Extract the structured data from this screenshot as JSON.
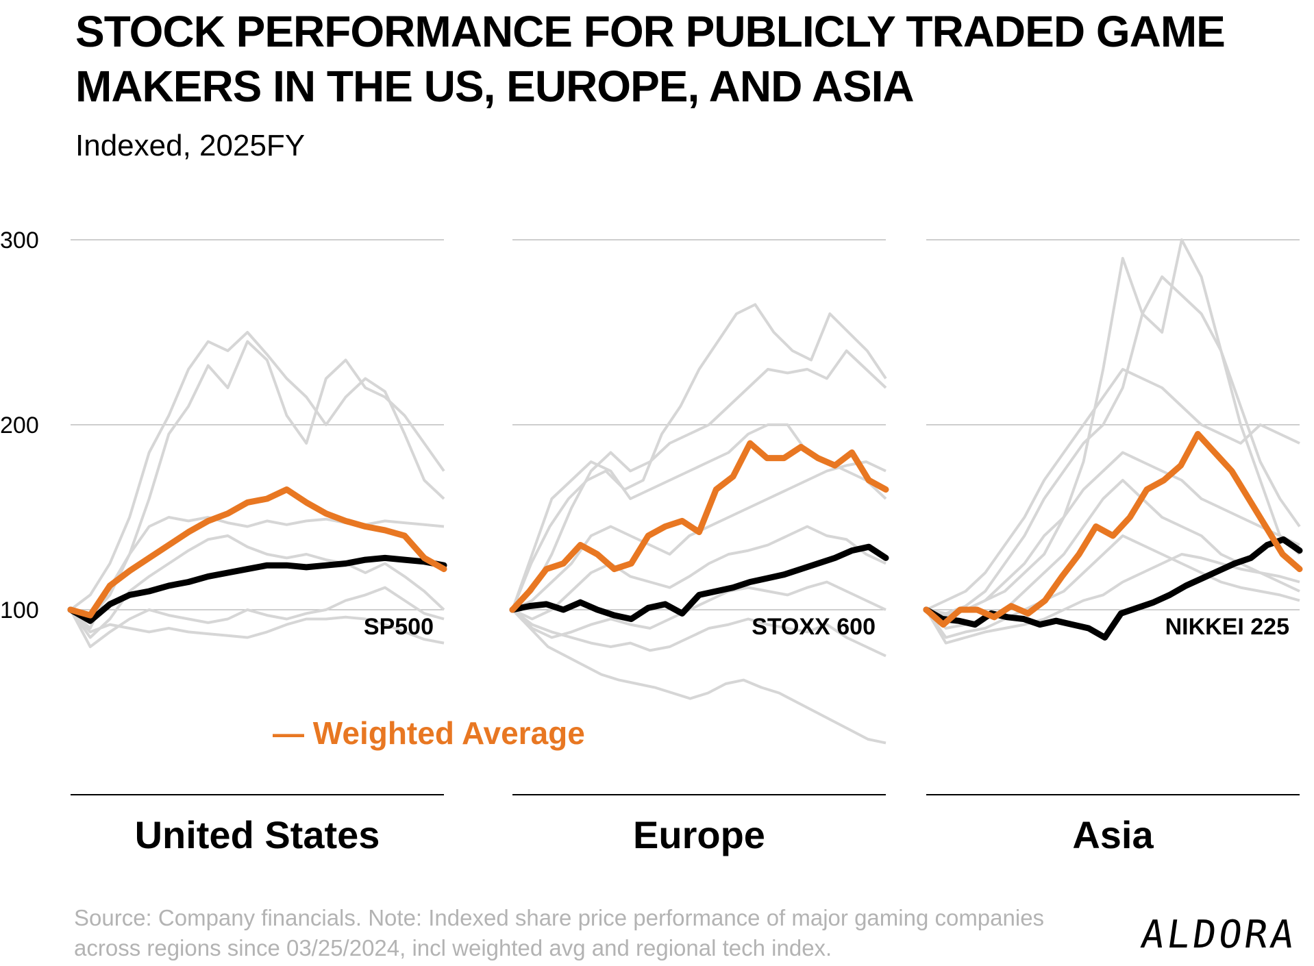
{
  "title": "STOCK PERFORMANCE FOR PUBLICLY TRADED GAME MAKERS IN THE US, EUROPE, AND ASIA",
  "subtitle": "Indexed, 2025FY",
  "source": "Source: Company financials. Note: Indexed share price performance of major gaming companies across regions since 03/25/2024, incl weighted avg and regional tech index.",
  "logo": "ALDORA",
  "colors": {
    "weighted_average": "#E87722",
    "index": "#000000",
    "companies": "#d6d6d6",
    "grid": "#bdbdbd",
    "axis": "#000000"
  },
  "chart_data": {
    "type": "line",
    "ylim": [
      0,
      300
    ],
    "yticks": [
      100,
      200,
      300
    ],
    "legend": {
      "label": "— Weighted  Average",
      "placement": "center-bottom"
    },
    "panels": [
      {
        "region": "United States",
        "index_name": "SP500",
        "weighted_average": [
          100,
          97,
          113,
          121,
          128,
          135,
          142,
          148,
          152,
          158,
          160,
          165,
          158,
          152,
          148,
          145,
          143,
          140,
          128,
          122
        ],
        "index": [
          100,
          94,
          103,
          108,
          110,
          113,
          115,
          118,
          120,
          122,
          124,
          124,
          123,
          124,
          125,
          127,
          128,
          127,
          126,
          124
        ],
        "companies": [
          [
            100,
            108,
            125,
            150,
            185,
            205,
            230,
            245,
            240,
            250,
            238,
            225,
            215,
            200,
            215,
            225,
            218,
            195,
            170,
            160
          ],
          [
            100,
            96,
            108,
            130,
            160,
            195,
            210,
            232,
            220,
            245,
            235,
            205,
            190,
            225,
            235,
            220,
            215,
            205,
            190,
            175
          ],
          [
            100,
            90,
            112,
            130,
            145,
            150,
            148,
            150,
            147,
            145,
            148,
            146,
            148,
            149,
            147,
            146,
            148,
            147,
            146,
            145
          ],
          [
            100,
            85,
            95,
            110,
            118,
            125,
            132,
            138,
            140,
            134,
            130,
            128,
            130,
            127,
            125,
            120,
            125,
            118,
            110,
            100
          ],
          [
            100,
            80,
            88,
            95,
            100,
            97,
            95,
            93,
            95,
            100,
            97,
            95,
            98,
            100,
            105,
            108,
            112,
            105,
            98,
            95
          ],
          [
            100,
            88,
            92,
            90,
            88,
            90,
            88,
            87,
            86,
            85,
            88,
            92,
            95,
            95,
            96,
            95,
            92,
            88,
            84,
            82
          ]
        ]
      },
      {
        "region": "Europe",
        "index_name": "STOXX 600",
        "weighted_average": [
          100,
          110,
          122,
          125,
          135,
          130,
          122,
          125,
          140,
          145,
          148,
          142,
          165,
          172,
          190,
          182,
          182,
          188,
          182,
          178,
          185,
          170,
          165
        ],
        "index": [
          100,
          102,
          103,
          100,
          104,
          100,
          97,
          95,
          101,
          103,
          98,
          108,
          110,
          112,
          115,
          117,
          119,
          122,
          125,
          128,
          132,
          134,
          128
        ],
        "companies": [
          [
            100,
            125,
            145,
            160,
            170,
            175,
            165,
            170,
            195,
            210,
            230,
            245,
            260,
            265,
            250,
            240,
            235,
            260,
            250,
            240,
            225
          ],
          [
            100,
            110,
            130,
            155,
            175,
            185,
            175,
            180,
            190,
            195,
            200,
            210,
            220,
            230,
            228,
            230,
            225,
            240,
            230,
            220
          ],
          [
            100,
            130,
            160,
            170,
            180,
            175,
            160,
            165,
            170,
            175,
            180,
            185,
            195,
            200,
            200,
            185,
            180,
            175,
            170,
            160
          ],
          [
            100,
            105,
            115,
            125,
            140,
            145,
            140,
            135,
            130,
            140,
            145,
            150,
            155,
            160,
            165,
            170,
            175,
            178,
            180,
            175
          ],
          [
            100,
            95,
            100,
            110,
            120,
            125,
            118,
            115,
            112,
            118,
            125,
            130,
            132,
            135,
            140,
            145,
            140,
            138,
            130,
            125
          ],
          [
            100,
            90,
            85,
            88,
            92,
            95,
            92,
            90,
            95,
            100,
            105,
            110,
            112,
            110,
            108,
            112,
            115,
            110,
            105,
            100
          ],
          [
            100,
            92,
            88,
            85,
            82,
            80,
            82,
            78,
            80,
            85,
            90,
            92,
            95,
            92,
            90,
            88,
            92,
            85,
            80,
            75
          ],
          [
            100,
            90,
            80,
            75,
            70,
            65,
            62,
            60,
            58,
            55,
            52,
            55,
            60,
            62,
            58,
            55,
            50,
            45,
            40,
            35,
            30,
            28
          ]
        ]
      },
      {
        "region": "Asia",
        "index_name": "NIKKEI 225",
        "weighted_average": [
          100,
          92,
          100,
          100,
          96,
          102,
          98,
          105,
          118,
          130,
          145,
          140,
          150,
          165,
          170,
          178,
          195,
          185,
          175,
          160,
          145,
          130,
          122
        ],
        "index": [
          100,
          95,
          94,
          92,
          98,
          96,
          95,
          92,
          94,
          92,
          90,
          85,
          98,
          101,
          104,
          108,
          113,
          117,
          121,
          125,
          128,
          135,
          138,
          132
        ],
        "companies": [
          [
            100,
            95,
            100,
            105,
            110,
            120,
            130,
            150,
            180,
            230,
            290,
            260,
            250,
            300,
            280,
            240,
            200,
            170,
            140,
            130
          ],
          [
            100,
            98,
            102,
            110,
            125,
            140,
            160,
            175,
            190,
            200,
            220,
            260,
            280,
            270,
            260,
            240,
            210,
            180,
            160,
            145
          ],
          [
            100,
            105,
            110,
            120,
            135,
            150,
            170,
            185,
            200,
            215,
            230,
            225,
            220,
            210,
            200,
            195,
            190,
            200,
            195,
            190
          ],
          [
            100,
            97,
            100,
            105,
            115,
            125,
            140,
            150,
            165,
            175,
            185,
            180,
            175,
            170,
            160,
            155,
            150,
            145,
            140,
            135
          ],
          [
            100,
            90,
            92,
            95,
            100,
            110,
            120,
            130,
            145,
            160,
            170,
            160,
            150,
            145,
            140,
            130,
            125,
            120,
            115,
            110
          ],
          [
            100,
            85,
            88,
            90,
            95,
            100,
            105,
            110,
            120,
            130,
            140,
            135,
            130,
            125,
            120,
            115,
            112,
            110,
            108,
            105
          ],
          [
            100,
            82,
            85,
            88,
            90,
            92,
            95,
            100,
            105,
            108,
            115,
            120,
            125,
            130,
            128,
            125,
            122,
            120,
            118,
            115
          ]
        ]
      }
    ]
  }
}
